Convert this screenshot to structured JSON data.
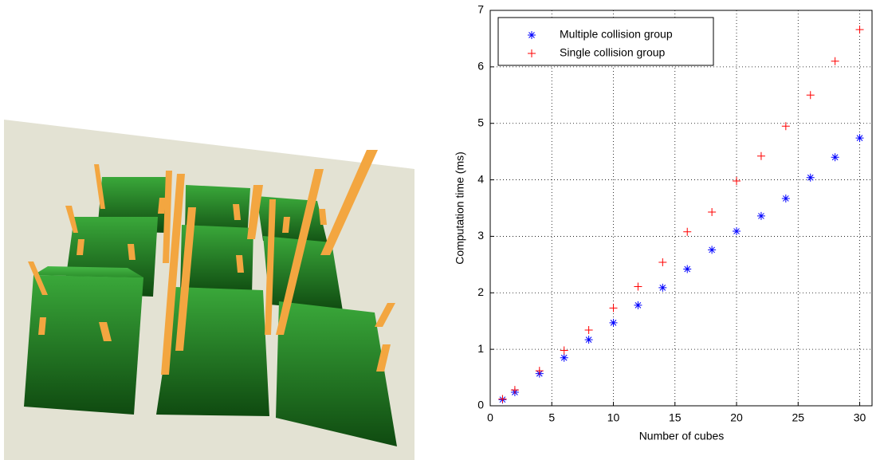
{
  "chart_data": {
    "type": "scatter",
    "xlabel": "Number of cubes",
    "ylabel": "Computation time (ms)",
    "xlim": [
      0,
      31
    ],
    "xticks": [
      0,
      5,
      10,
      15,
      20,
      25,
      30
    ],
    "ylim": [
      0,
      7
    ],
    "yticks": [
      0,
      1,
      2,
      3,
      4,
      5,
      6,
      7
    ],
    "grid": true,
    "legend": "upper left",
    "x": [
      1,
      2,
      4,
      6,
      8,
      10,
      12,
      14,
      16,
      18,
      20,
      22,
      24,
      26,
      28,
      30
    ],
    "series": [
      {
        "name": "Multiple collision group",
        "color": "#0000ff",
        "marker": "*",
        "values": [
          0.11,
          0.24,
          0.57,
          0.85,
          1.17,
          1.47,
          1.78,
          2.09,
          2.42,
          2.76,
          3.09,
          3.36,
          3.67,
          4.04,
          4.4,
          4.74
        ]
      },
      {
        "name": "Single collision group",
        "color": "#ff0000",
        "marker": "+",
        "values": [
          0.12,
          0.28,
          0.62,
          0.98,
          1.34,
          1.73,
          2.11,
          2.54,
          3.08,
          3.43,
          3.98,
          4.42,
          4.95,
          5.5,
          6.1,
          6.66
        ]
      }
    ]
  }
}
